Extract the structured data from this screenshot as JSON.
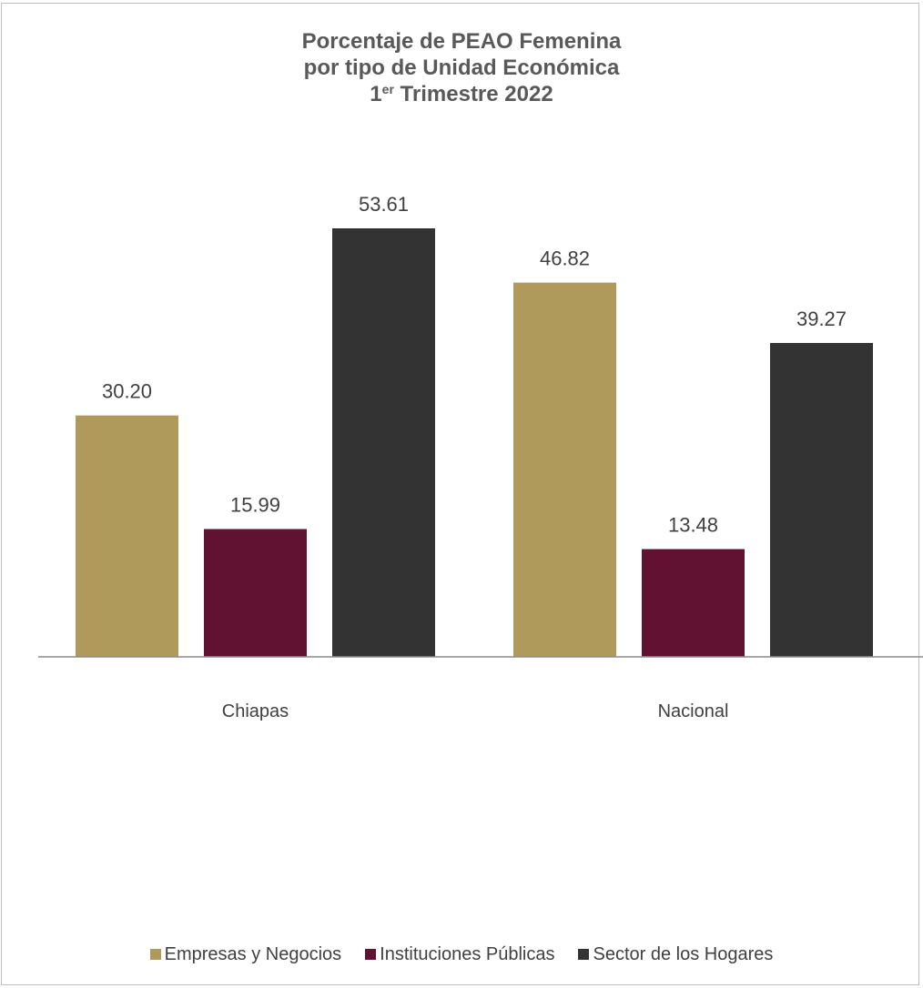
{
  "chart_data": {
    "type": "bar",
    "title_line1": "Porcentaje de PEAO Femenina",
    "title_line2": "por tipo de Unidad Económica",
    "title_line3_num": "1",
    "title_line3_sup": "er",
    "title_line3_rest": " Trimestre 2022",
    "categories": [
      "Chiapas",
      "Nacional"
    ],
    "series": [
      {
        "name": "Empresas y Negocios",
        "color": "#b09a5b",
        "values": [
          30.2,
          46.82
        ],
        "labels": [
          "30.20",
          "46.82"
        ]
      },
      {
        "name": "Instituciones Públicas",
        "color": "#611232",
        "values": [
          15.99,
          13.48
        ],
        "labels": [
          "15.99",
          "13.48"
        ]
      },
      {
        "name": "Sector de los Hogares",
        "color": "#333333",
        "values": [
          53.61,
          39.27
        ],
        "labels": [
          "53.61",
          "39.27"
        ]
      }
    ],
    "ylim": [
      0,
      53.61
    ],
    "grid": false,
    "legend_position": "bottom"
  }
}
